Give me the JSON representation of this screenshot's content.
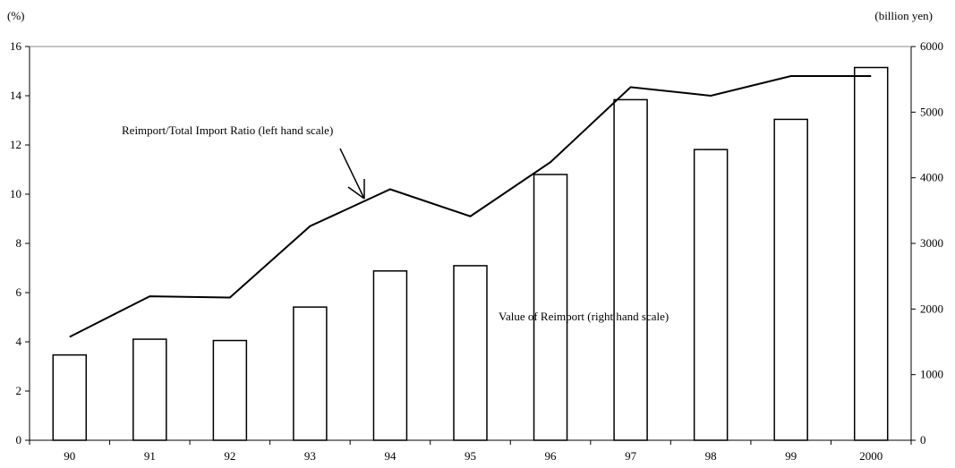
{
  "chart_data": {
    "type": "bar",
    "categories": [
      "90",
      "91",
      "92",
      "93",
      "94",
      "95",
      "96",
      "97",
      "98",
      "99",
      "2000"
    ],
    "series": [
      {
        "type": "bar",
        "axis": "right",
        "values": [
          1300,
          1540,
          1520,
          2030,
          2580,
          2660,
          4050,
          5190,
          4430,
          4890,
          5680
        ]
      },
      {
        "type": "line",
        "axis": "left",
        "values": [
          4.2,
          5.85,
          5.8,
          8.7,
          10.2,
          9.1,
          11.3,
          14.35,
          14.0,
          14.8,
          14.8
        ]
      }
    ],
    "left_axis": {
      "unit": "(%)",
      "ylim": [
        0,
        16
      ],
      "ticks": [
        "0",
        "2",
        "4",
        "6",
        "8",
        "10",
        "12",
        "14",
        "16"
      ]
    },
    "right_axis": {
      "unit": "(billion yen)",
      "ylim": [
        0,
        6000
      ],
      "ticks": [
        "0",
        "1000",
        "2000",
        "3000",
        "4000",
        "5000",
        "6000"
      ]
    },
    "annotations": {
      "line_label": "Reimport/Total Import Ratio (left hand scale)",
      "bar_label": "Value of Reimport (right hand scale)"
    },
    "grid": false,
    "legend": "none"
  }
}
